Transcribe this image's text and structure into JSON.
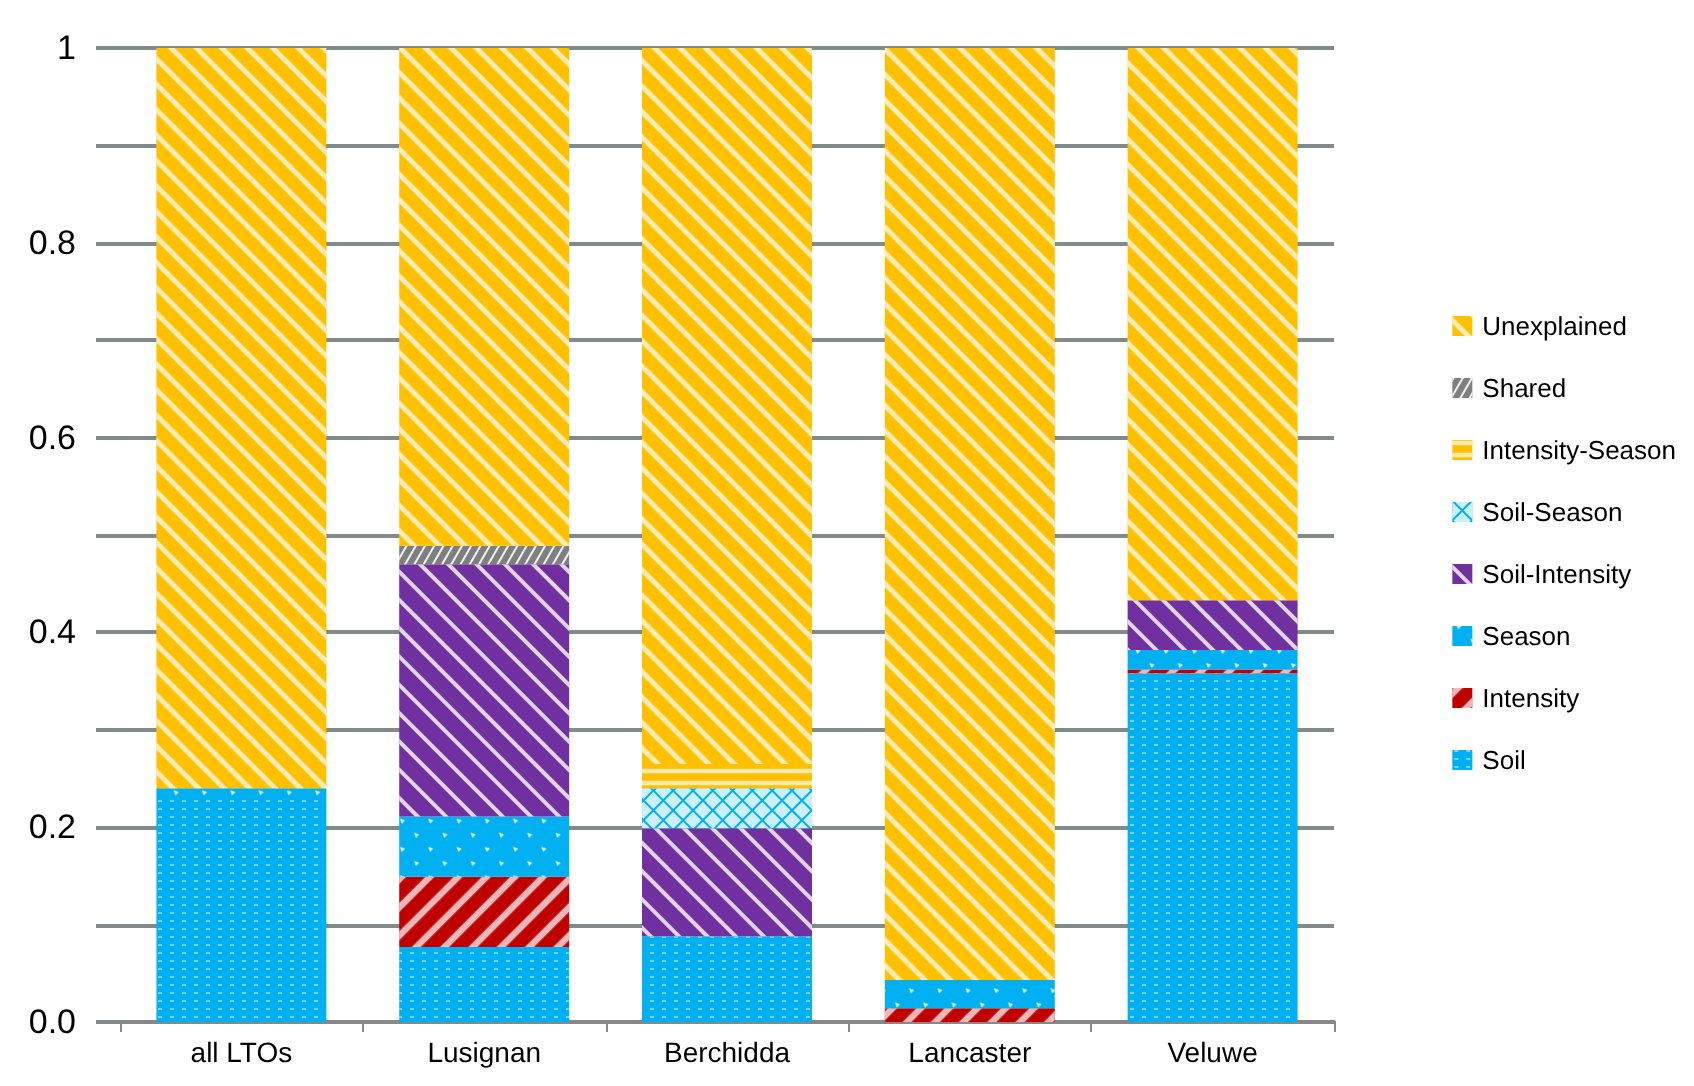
{
  "chart_data": {
    "type": "bar",
    "stacked": true,
    "categories": [
      "all LTOs",
      "Lusignan",
      "Berchidda",
      "Lancaster",
      "Veluwe"
    ],
    "series": [
      {
        "name": "Soil",
        "color": "#00b0f0",
        "values": [
          0.228,
          0.077,
          0.088,
          0,
          0.358
        ]
      },
      {
        "name": "Intensity",
        "color": "#c00000",
        "values": [
          0,
          0.072,
          0,
          0.014,
          0.004
        ]
      },
      {
        "name": "Season",
        "color": "#00b0f0",
        "values": [
          0.012,
          0.062,
          0,
          0.029,
          0.02
        ]
      },
      {
        "name": "Soil-Intensity",
        "color": "#7030a0",
        "values": [
          0,
          0.259,
          0.111,
          0,
          0.051
        ]
      },
      {
        "name": "Soil-Season",
        "color": "#00b0f0",
        "values": [
          0,
          0,
          0.041,
          0,
          0
        ]
      },
      {
        "name": "Intensity-Season",
        "color": "#ffc000",
        "values": [
          0,
          0,
          0.025,
          0,
          0
        ]
      },
      {
        "name": "Shared",
        "color": "#7f7f7f",
        "values": [
          0,
          0.019,
          0,
          0,
          0
        ]
      },
      {
        "name": "Unexplained",
        "color": "#ffc000",
        "values": [
          0.76,
          0.511,
          0.735,
          0.957,
          0.567
        ]
      }
    ],
    "ylim": [
      0,
      1
    ],
    "yticks": [
      {
        "value": 0,
        "label": "0.0"
      },
      {
        "value": 0.1,
        "label": null
      },
      0.2,
      {
        "value": 0.3,
        "label": null
      },
      0.4,
      {
        "value": 0.5,
        "label": null
      },
      0.6,
      {
        "value": 0.7,
        "label": null
      },
      0.8,
      {
        "value": 0.9,
        "label": null
      },
      1
    ],
    "grid": "y",
    "legend": "right"
  }
}
